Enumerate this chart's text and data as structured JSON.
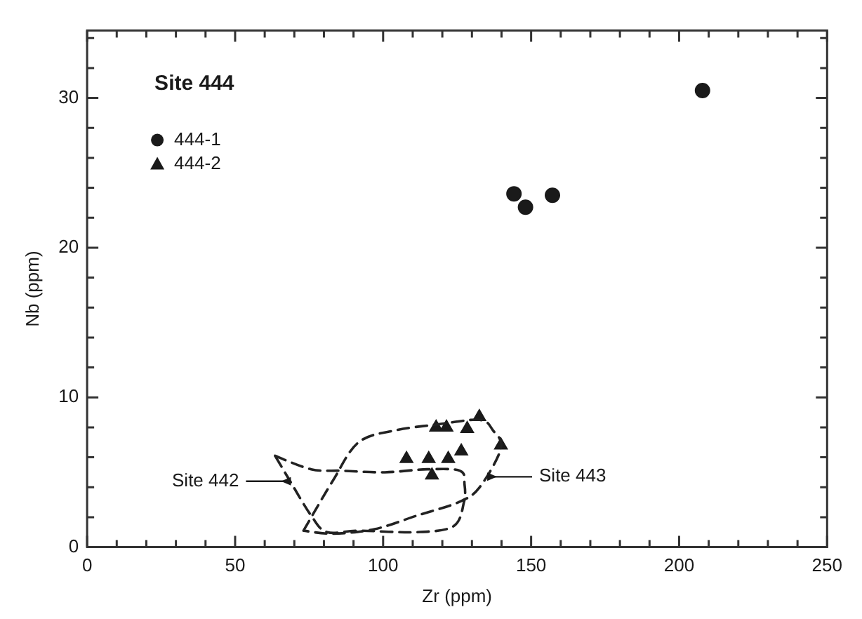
{
  "chart_data": {
    "type": "scatter",
    "title": "Site 444",
    "xlabel": "Zr (ppm)",
    "ylabel": "Nb (ppm)",
    "xlim": [
      0,
      250
    ],
    "ylim": [
      0,
      34.5
    ],
    "xticks": [
      0,
      {
        "value": 10,
        "label": null
      },
      {
        "value": 20,
        "label": null
      },
      {
        "value": 30,
        "label": null
      },
      {
        "value": 40,
        "label": null
      },
      50,
      {
        "value": 60,
        "label": null
      },
      {
        "value": 70,
        "label": null
      },
      {
        "value": 80,
        "label": null
      },
      {
        "value": 90,
        "label": null
      },
      100,
      {
        "value": 110,
        "label": null
      },
      {
        "value": 120,
        "label": null
      },
      {
        "value": 130,
        "label": null
      },
      {
        "value": 140,
        "label": null
      },
      150,
      {
        "value": 160,
        "label": null
      },
      {
        "value": 170,
        "label": null
      },
      {
        "value": 180,
        "label": null
      },
      {
        "value": 190,
        "label": null
      },
      200,
      {
        "value": 210,
        "label": null
      },
      {
        "value": 220,
        "label": null
      },
      {
        "value": 230,
        "label": null
      },
      {
        "value": 240,
        "label": null
      },
      250
    ],
    "yticks": [
      0,
      {
        "value": 2,
        "label": null
      },
      {
        "value": 4,
        "label": null
      },
      {
        "value": 6,
        "label": null
      },
      {
        "value": 8,
        "label": null
      },
      10,
      {
        "value": 12,
        "label": null
      },
      {
        "value": 14,
        "label": null
      },
      {
        "value": 16,
        "label": null
      },
      {
        "value": 18,
        "label": null
      },
      20,
      {
        "value": 22,
        "label": null
      },
      {
        "value": 24,
        "label": null
      },
      {
        "value": 26,
        "label": null
      },
      {
        "value": 28,
        "label": null
      },
      30,
      {
        "value": 32,
        "label": null
      },
      {
        "value": 34,
        "label": null
      }
    ],
    "grid": false,
    "legend": "top left",
    "series": [
      {
        "name": "444-1",
        "marker": "circle",
        "color": "#1a1a1a",
        "x": [
          207.9,
          144.2,
          148.1,
          157.2
        ],
        "values": [
          30.5,
          23.6,
          22.7,
          23.5
        ]
      },
      {
        "name": "444-2",
        "marker": "triangle",
        "color": "#1a1a1a",
        "x": [
          107.9,
          115.4,
          116.5,
          122,
          126.4,
          117.9,
          121.4,
          128.4,
          132.5,
          139.8
        ],
        "values": [
          5.9,
          5.9,
          4.8,
          5.9,
          6.4,
          8,
          8,
          7.9,
          8.7,
          6.8
        ]
      }
    ],
    "annotations": [
      "Site 442",
      "Site 443"
    ]
  }
}
